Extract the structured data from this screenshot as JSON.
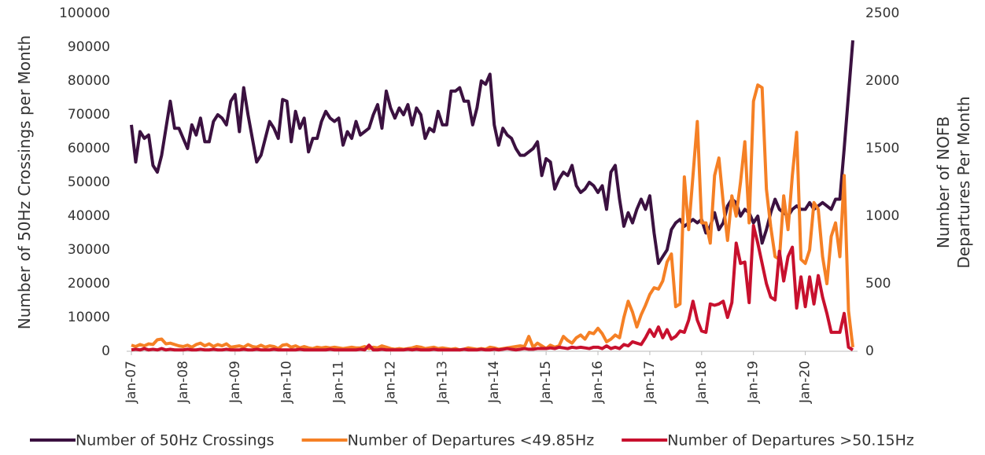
{
  "chart_data": {
    "type": "line",
    "categories": [
      "Jan-07",
      null,
      null,
      null,
      null,
      null,
      null,
      null,
      null,
      null,
      null,
      null,
      "Jan-08",
      null,
      null,
      null,
      null,
      null,
      null,
      null,
      null,
      null,
      null,
      null,
      "Jan-09",
      null,
      null,
      null,
      null,
      null,
      null,
      null,
      null,
      null,
      null,
      null,
      "Jan-10",
      null,
      null,
      null,
      null,
      null,
      null,
      null,
      null,
      null,
      null,
      null,
      "Jan-11",
      null,
      null,
      null,
      null,
      null,
      null,
      null,
      null,
      null,
      null,
      null,
      "Jan-12",
      null,
      null,
      null,
      null,
      null,
      null,
      null,
      null,
      null,
      null,
      null,
      "Jan-13",
      null,
      null,
      null,
      null,
      null,
      null,
      null,
      null,
      null,
      null,
      null,
      "Jan-14",
      null,
      null,
      null,
      null,
      null,
      null,
      null,
      null,
      null,
      null,
      null,
      "Jan-15",
      null,
      null,
      null,
      null,
      null,
      null,
      null,
      null,
      null,
      null,
      null,
      "Jan-16",
      null,
      null,
      null,
      null,
      null,
      null,
      null,
      null,
      null,
      null,
      null,
      "Jan-17",
      null,
      null,
      null,
      null,
      null,
      null,
      null,
      null,
      null,
      null,
      null,
      "Jan-18",
      null,
      null,
      null,
      null,
      null,
      null,
      null,
      null,
      null,
      null,
      null,
      "Jan-19",
      null,
      null,
      null,
      null,
      null,
      null,
      null,
      null,
      null,
      null,
      null,
      "Jan-20",
      null,
      null,
      null,
      null,
      null,
      null,
      null,
      null,
      null,
      null,
      null
    ],
    "y_label": "Number of 50Hz Crossings per Month",
    "y2_label": "Number of NOFB Departures Per Month",
    "ylim": [
      0,
      100000
    ],
    "yticks": [
      0,
      10000,
      20000,
      30000,
      40000,
      50000,
      60000,
      70000,
      80000,
      90000,
      100000
    ],
    "y2lim": [
      0,
      2500
    ],
    "y2ticks": [
      0,
      500,
      1000,
      1500,
      2000,
      2500
    ],
    "series": [
      {
        "name": "Number of 50Hz Crossings",
        "color": "#3b1140",
        "values": [
          67000,
          56000,
          65000,
          63000,
          64000,
          55000,
          53000,
          58000,
          66000,
          74000,
          66000,
          66000,
          63000,
          60000,
          67000,
          64000,
          69000,
          62000,
          62000,
          68000,
          70000,
          69000,
          67000,
          74000,
          76000,
          65000,
          78000,
          70000,
          63000,
          56000,
          58000,
          63000,
          68000,
          66000,
          63000,
          74500,
          74000,
          62000,
          71000,
          66000,
          69000,
          59000,
          63000,
          63000,
          68000,
          71000,
          69000,
          68000,
          69000,
          61000,
          65000,
          63000,
          68000,
          64000,
          65000,
          66000,
          70000,
          73000,
          66000,
          77000,
          72000,
          69000,
          72000,
          70000,
          73000,
          67000,
          72000,
          70000,
          63000,
          66000,
          65000,
          71000,
          67000,
          67000,
          77000,
          77000,
          78000,
          74000,
          74000,
          67000,
          72000,
          80000,
          79000,
          82000,
          67000,
          61000,
          66000,
          64000,
          63000,
          60000,
          58000,
          58000,
          59000,
          60000,
          62000,
          52000,
          57000,
          56000,
          48000,
          51000,
          53000,
          52000,
          55000,
          49000,
          47000,
          48000,
          50000,
          49000,
          47000,
          49000,
          42000,
          53000,
          55000,
          45000,
          37000,
          41000,
          38000,
          42000,
          45000,
          42000,
          46000,
          35000,
          26000,
          28000,
          30000,
          36000,
          38000,
          39000,
          37000,
          38000,
          39000,
          38000,
          39000,
          35000,
          37000,
          41000,
          36000,
          38000,
          43000,
          45000,
          44000,
          40000,
          42000,
          41000,
          38000,
          40000,
          32000,
          36000,
          41000,
          45000,
          42000,
          41000,
          40000,
          42000,
          43000,
          42000,
          42000,
          44000,
          42000,
          43000,
          44000,
          43000,
          42000,
          45000,
          45000,
          60000,
          76000,
          92000
        ]
      },
      {
        "name": "Number of Departures <49.85Hz",
        "color": "#f58025",
        "axis": "y2",
        "values": [
          45,
          35,
          50,
          40,
          55,
          50,
          85,
          90,
          55,
          60,
          50,
          40,
          35,
          45,
          30,
          50,
          60,
          40,
          55,
          35,
          50,
          40,
          55,
          30,
          35,
          40,
          30,
          50,
          35,
          30,
          45,
          30,
          40,
          35,
          20,
          45,
          50,
          30,
          40,
          25,
          35,
          25,
          20,
          30,
          25,
          30,
          25,
          30,
          25,
          20,
          25,
          30,
          25,
          25,
          35,
          20,
          30,
          25,
          40,
          30,
          20,
          15,
          20,
          15,
          20,
          25,
          35,
          30,
          20,
          25,
          30,
          20,
          25,
          20,
          15,
          20,
          10,
          15,
          25,
          20,
          15,
          20,
          15,
          30,
          25,
          15,
          20,
          25,
          30,
          35,
          40,
          35,
          110,
          30,
          60,
          40,
          20,
          45,
          30,
          40,
          110,
          80,
          60,
          100,
          120,
          90,
          140,
          130,
          170,
          130,
          70,
          90,
          120,
          100,
          250,
          370,
          290,
          180,
          270,
          340,
          420,
          470,
          460,
          520,
          660,
          720,
          330,
          350,
          1290,
          900,
          1300,
          1700,
          950,
          950,
          800,
          1300,
          1430,
          1100,
          820,
          1150,
          1000,
          1250,
          1550,
          950,
          1850,
          1970,
          1950,
          1200,
          920,
          700,
          680,
          1150,
          900,
          1300,
          1620,
          680,
          650,
          750,
          1100,
          1050,
          700,
          500,
          850,
          950,
          700,
          1300,
          300,
          30
        ]
      },
      {
        "name": "Number of Departures >50.15Hz",
        "color": "#c8102e",
        "axis": "y2",
        "values": [
          10,
          15,
          10,
          20,
          10,
          15,
          10,
          20,
          10,
          15,
          10,
          10,
          10,
          15,
          10,
          10,
          15,
          10,
          10,
          15,
          10,
          10,
          15,
          10,
          10,
          10,
          15,
          10,
          10,
          15,
          10,
          10,
          10,
          15,
          10,
          10,
          10,
          10,
          10,
          15,
          10,
          10,
          10,
          10,
          10,
          10,
          15,
          10,
          10,
          10,
          10,
          10,
          10,
          15,
          10,
          45,
          10,
          10,
          15,
          10,
          10,
          10,
          10,
          10,
          15,
          10,
          15,
          10,
          10,
          10,
          15,
          10,
          10,
          10,
          10,
          10,
          10,
          15,
          10,
          10,
          10,
          15,
          10,
          10,
          15,
          10,
          15,
          20,
          15,
          10,
          15,
          20,
          15,
          15,
          20,
          20,
          20,
          25,
          20,
          30,
          25,
          20,
          30,
          25,
          30,
          25,
          20,
          30,
          30,
          20,
          40,
          20,
          30,
          20,
          50,
          40,
          70,
          60,
          50,
          100,
          160,
          110,
          180,
          100,
          160,
          90,
          110,
          150,
          140,
          230,
          370,
          230,
          150,
          140,
          350,
          340,
          350,
          370,
          250,
          360,
          800,
          650,
          660,
          360,
          930,
          800,
          650,
          500,
          400,
          380,
          740,
          520,
          700,
          770,
          320,
          550,
          330,
          550,
          350,
          560,
          400,
          280,
          140,
          140,
          140,
          280,
          30,
          10
        ]
      }
    ]
  }
}
